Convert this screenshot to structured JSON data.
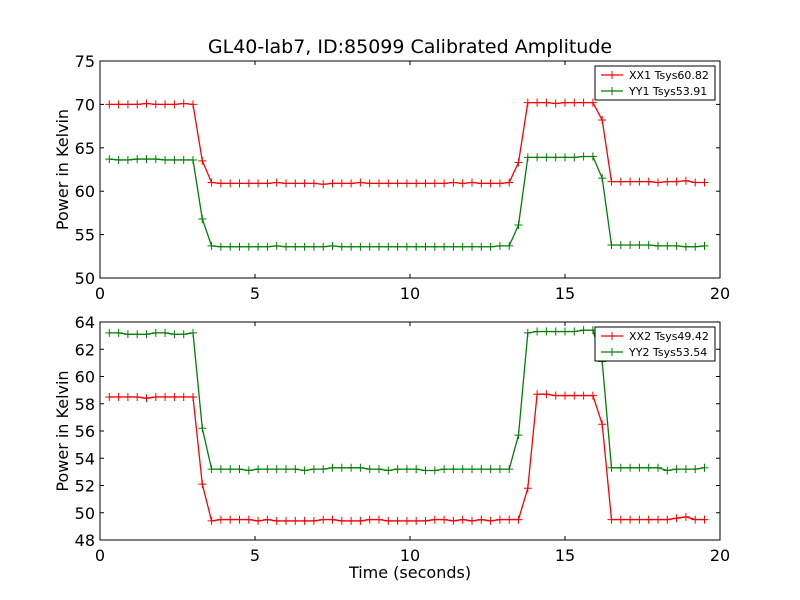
{
  "title": "GL40-lab7, ID:85099 Calibrated Amplitude",
  "chart_data": [
    {
      "type": "line",
      "title": "GL40-lab7, ID:85099 Calibrated Amplitude",
      "xlabel": "",
      "ylabel": "Power in Kelvin",
      "xlim": [
        0,
        20
      ],
      "ylim": [
        50,
        75
      ],
      "xticks": [
        "0",
        "5",
        "10",
        "15",
        "20"
      ],
      "yticks": [
        "50",
        "55",
        "60",
        "65",
        "70",
        "75"
      ],
      "legend_position": "top-right",
      "grid": false,
      "x": [
        0.3,
        0.6,
        0.9,
        1.2,
        1.5,
        1.8,
        2.1,
        2.4,
        2.7,
        3.0,
        3.3,
        3.6,
        3.9,
        4.2,
        4.5,
        4.8,
        5.1,
        5.4,
        5.7,
        6.0,
        6.3,
        6.6,
        6.9,
        7.2,
        7.5,
        7.8,
        8.1,
        8.4,
        8.7,
        9.0,
        9.3,
        9.6,
        9.9,
        10.2,
        10.5,
        10.8,
        11.1,
        11.4,
        11.7,
        12.0,
        12.3,
        12.6,
        12.9,
        13.2,
        13.5,
        13.8,
        14.1,
        14.4,
        14.7,
        15.0,
        15.3,
        15.6,
        15.9,
        16.2,
        16.5,
        16.8,
        17.1,
        17.4,
        17.7,
        18.0,
        18.3,
        18.6,
        18.9,
        19.2,
        19.5
      ],
      "series": [
        {
          "name": "XX1 Tsys60.82",
          "color": "#ff0000",
          "values": [
            70.0,
            70.0,
            70.0,
            70.0,
            70.1,
            70.0,
            70.0,
            70.0,
            70.1,
            70.0,
            63.5,
            61.0,
            60.9,
            60.9,
            60.9,
            60.9,
            60.9,
            60.9,
            61.0,
            60.9,
            60.9,
            60.9,
            60.9,
            60.8,
            60.9,
            60.9,
            60.9,
            61.0,
            60.9,
            60.9,
            60.9,
            60.9,
            60.9,
            60.9,
            60.9,
            60.9,
            60.9,
            61.0,
            60.9,
            61.0,
            60.9,
            60.9,
            60.9,
            61.0,
            63.3,
            70.2,
            70.2,
            70.2,
            70.1,
            70.2,
            70.2,
            70.2,
            70.2,
            68.2,
            61.1,
            61.1,
            61.1,
            61.1,
            61.1,
            61.0,
            61.1,
            61.1,
            61.2,
            61.0,
            61.0
          ]
        },
        {
          "name": "YY1 Tsys53.91",
          "color": "#008000",
          "values": [
            63.7,
            63.6,
            63.6,
            63.7,
            63.7,
            63.7,
            63.6,
            63.6,
            63.6,
            63.6,
            56.8,
            53.7,
            53.6,
            53.6,
            53.6,
            53.6,
            53.6,
            53.6,
            53.7,
            53.6,
            53.6,
            53.6,
            53.6,
            53.6,
            53.7,
            53.6,
            53.6,
            53.6,
            53.6,
            53.6,
            53.6,
            53.6,
            53.6,
            53.6,
            53.6,
            53.6,
            53.6,
            53.6,
            53.6,
            53.6,
            53.6,
            53.6,
            53.7,
            53.7,
            56.1,
            63.9,
            63.9,
            63.9,
            63.9,
            63.9,
            63.9,
            64.0,
            64.0,
            61.5,
            53.8,
            53.8,
            53.8,
            53.8,
            53.8,
            53.7,
            53.7,
            53.7,
            53.6,
            53.6,
            53.7
          ]
        }
      ]
    },
    {
      "type": "line",
      "title": "",
      "xlabel": "Time (seconds)",
      "ylabel": "Power in Kelvin",
      "xlim": [
        0,
        20
      ],
      "ylim": [
        48,
        64
      ],
      "xticks": [
        "0",
        "5",
        "10",
        "15",
        "20"
      ],
      "yticks": [
        "48",
        "50",
        "52",
        "54",
        "56",
        "58",
        "60",
        "62",
        "64"
      ],
      "legend_position": "top-right",
      "grid": false,
      "x": [
        0.3,
        0.6,
        0.9,
        1.2,
        1.5,
        1.8,
        2.1,
        2.4,
        2.7,
        3.0,
        3.3,
        3.6,
        3.9,
        4.2,
        4.5,
        4.8,
        5.1,
        5.4,
        5.7,
        6.0,
        6.3,
        6.6,
        6.9,
        7.2,
        7.5,
        7.8,
        8.1,
        8.4,
        8.7,
        9.0,
        9.3,
        9.6,
        9.9,
        10.2,
        10.5,
        10.8,
        11.1,
        11.4,
        11.7,
        12.0,
        12.3,
        12.6,
        12.9,
        13.2,
        13.5,
        13.8,
        14.1,
        14.4,
        14.7,
        15.0,
        15.3,
        15.6,
        15.9,
        16.2,
        16.5,
        16.8,
        17.1,
        17.4,
        17.7,
        18.0,
        18.3,
        18.6,
        18.9,
        19.2,
        19.5
      ],
      "series": [
        {
          "name": "XX2 Tsys49.42",
          "color": "#ff0000",
          "values": [
            58.5,
            58.5,
            58.5,
            58.5,
            58.4,
            58.5,
            58.5,
            58.5,
            58.5,
            58.5,
            52.1,
            49.4,
            49.5,
            49.5,
            49.5,
            49.5,
            49.4,
            49.5,
            49.4,
            49.4,
            49.4,
            49.4,
            49.4,
            49.5,
            49.5,
            49.4,
            49.4,
            49.4,
            49.5,
            49.5,
            49.4,
            49.4,
            49.4,
            49.4,
            49.4,
            49.5,
            49.5,
            49.4,
            49.5,
            49.4,
            49.5,
            49.4,
            49.5,
            49.5,
            49.5,
            51.8,
            58.7,
            58.7,
            58.6,
            58.6,
            58.6,
            58.6,
            58.6,
            56.5,
            49.5,
            49.5,
            49.5,
            49.5,
            49.5,
            49.5,
            49.5,
            49.6,
            49.7,
            49.5,
            49.5
          ]
        },
        {
          "name": "YY2 Tsys53.54",
          "color": "#008000",
          "values": [
            63.2,
            63.2,
            63.1,
            63.1,
            63.1,
            63.2,
            63.2,
            63.1,
            63.1,
            63.2,
            56.2,
            53.2,
            53.2,
            53.2,
            53.2,
            53.1,
            53.2,
            53.2,
            53.2,
            53.2,
            53.2,
            53.1,
            53.2,
            53.2,
            53.3,
            53.3,
            53.3,
            53.3,
            53.2,
            53.2,
            53.1,
            53.2,
            53.2,
            53.2,
            53.1,
            53.1,
            53.2,
            53.2,
            53.2,
            53.2,
            53.2,
            53.2,
            53.2,
            53.2,
            55.7,
            63.2,
            63.3,
            63.3,
            63.3,
            63.3,
            63.3,
            63.4,
            63.4,
            61.1,
            53.3,
            53.3,
            53.3,
            53.3,
            53.3,
            53.3,
            53.1,
            53.2,
            53.2,
            53.2,
            53.3
          ]
        }
      ]
    }
  ]
}
